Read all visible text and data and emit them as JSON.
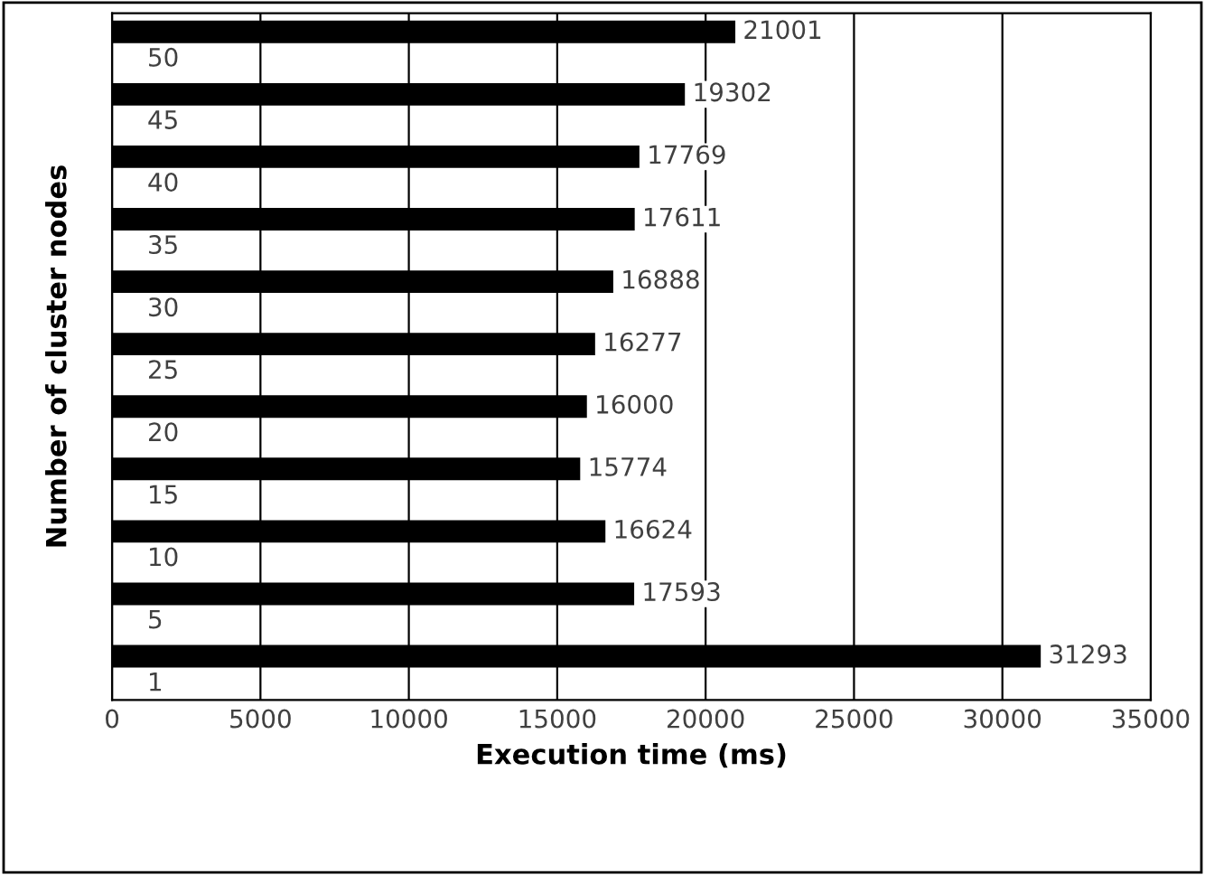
{
  "chart_data": {
    "type": "bar",
    "orientation": "horizontal",
    "xlabel": "Execution time (ms)",
    "ylabel": "Number of cluster nodes",
    "categories": [
      "50",
      "45",
      "40",
      "35",
      "30",
      "25",
      "20",
      "15",
      "10",
      "5",
      "1"
    ],
    "series": [
      {
        "color": "#000000",
        "values": [
          21001,
          19302,
          17769,
          17611,
          16888,
          16277,
          16000,
          15774,
          16624,
          17593,
          31293
        ],
        "value_labels": [
          "21001",
          "19302",
          "17769",
          "17611",
          "16888",
          "16277",
          "16000",
          "15774",
          "16624",
          "17593",
          "31293"
        ]
      }
    ],
    "xlim": [
      0,
      35000
    ],
    "xticks": [
      0,
      5000,
      10000,
      15000,
      20000,
      25000,
      30000,
      35000
    ],
    "grid": "x",
    "legend": false
  }
}
